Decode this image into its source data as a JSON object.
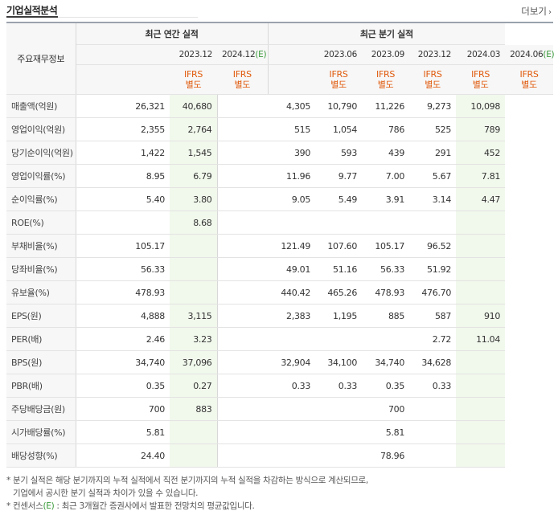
{
  "header": {
    "title": "기업실적분석",
    "more_label": "더보기"
  },
  "table": {
    "row_label_header": "주요재무정보",
    "group_annual": "최근 연간 실적",
    "group_quarter": "최근 분기 실적",
    "periods": [
      "2023.12",
      "2024.12",
      "2023.06",
      "2023.09",
      "2023.12",
      "2024.03",
      "2024.06"
    ],
    "estimate_mark": "(E)",
    "ifrs_label": "IFRS",
    "ifrs_sub": "별도",
    "rows": [
      {
        "label": "매출액(억원)",
        "values": [
          "",
          "26,321",
          "40,680",
          "",
          "4,305",
          "10,790",
          "11,226",
          "9,273",
          "10,098"
        ]
      },
      {
        "label": "영업이익(억원)",
        "values": [
          "",
          "2,355",
          "2,764",
          "",
          "515",
          "1,054",
          "786",
          "525",
          "789"
        ]
      },
      {
        "label": "당기순이익(억원)",
        "values": [
          "",
          "1,422",
          "1,545",
          "",
          "390",
          "593",
          "439",
          "291",
          "452"
        ]
      },
      {
        "label": "영업이익률(%)",
        "values": [
          "",
          "8.95",
          "6.79",
          "",
          "11.96",
          "9.77",
          "7.00",
          "5.67",
          "7.81"
        ]
      },
      {
        "label": "순이익률(%)",
        "values": [
          "",
          "5.40",
          "3.80",
          "",
          "9.05",
          "5.49",
          "3.91",
          "3.14",
          "4.47"
        ]
      },
      {
        "label": "ROE(%)",
        "values": [
          "",
          "",
          "8.68",
          "",
          "",
          "",
          "",
          "",
          ""
        ]
      },
      {
        "label": "부채비율(%)",
        "values": [
          "",
          "105.17",
          "",
          "",
          "121.49",
          "107.60",
          "105.17",
          "96.52",
          ""
        ]
      },
      {
        "label": "당좌비율(%)",
        "values": [
          "",
          "56.33",
          "",
          "",
          "49.01",
          "51.16",
          "56.33",
          "51.92",
          ""
        ]
      },
      {
        "label": "유보율(%)",
        "values": [
          "",
          "478.93",
          "",
          "",
          "440.42",
          "465.26",
          "478.93",
          "476.70",
          ""
        ]
      },
      {
        "label": "EPS(원)",
        "values": [
          "",
          "4,888",
          "3,115",
          "",
          "2,383",
          "1,195",
          "885",
          "587",
          "910"
        ]
      },
      {
        "label": "PER(배)",
        "values": [
          "",
          "2.46",
          "3.23",
          "",
          "",
          "",
          "",
          "2.72",
          "11.04"
        ]
      },
      {
        "label": "BPS(원)",
        "values": [
          "",
          "34,740",
          "37,096",
          "",
          "32,904",
          "34,100",
          "34,740",
          "34,628",
          ""
        ]
      },
      {
        "label": "PBR(배)",
        "values": [
          "",
          "0.35",
          "0.27",
          "",
          "0.33",
          "0.33",
          "0.35",
          "0.33",
          ""
        ]
      },
      {
        "label": "주당배당금(원)",
        "values": [
          "",
          "700",
          "883",
          "",
          "",
          "",
          "700",
          "",
          ""
        ]
      },
      {
        "label": "시가배당률(%)",
        "values": [
          "",
          "5.81",
          "",
          "",
          "",
          "",
          "5.81",
          "",
          ""
        ]
      },
      {
        "label": "배당성향(%)",
        "values": [
          "",
          "24.40",
          "",
          "",
          "",
          "",
          "78.96",
          "",
          ""
        ]
      }
    ]
  },
  "notes": {
    "line1": "* 분기 실적은 해당 분기까지의 누적 실적에서 직전 분기까지의 누적 실적을 차감하는 방식으로 계산되므로,",
    "line2": "기업에서 공시한 분기 실적과 차이가 있을 수 있습니다.",
    "line3_pre": "* 컨센서스",
    "line3_mark": "(E)",
    "line3_post": " : 최근 3개월간 증권사에서 발표한 전망치의 평균값입니다."
  },
  "colors": {
    "accent_orange": "#e05a0c",
    "estimate_green": "#3a9a3a",
    "estimate_bg": "#f1f8ec"
  }
}
